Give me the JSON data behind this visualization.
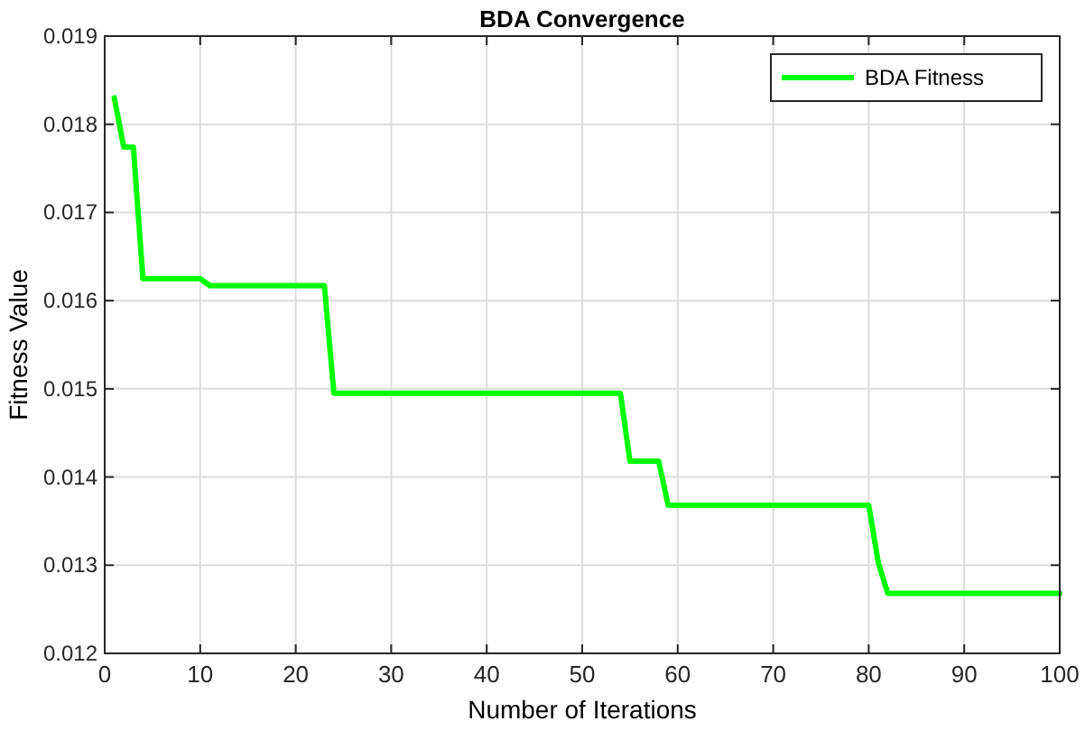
{
  "chart_data": {
    "type": "line",
    "title": "BDA Convergence",
    "xlabel": "Number of Iterations",
    "ylabel": "Fitness Value",
    "x": [
      1,
      2,
      3,
      4,
      10,
      11,
      23,
      24,
      54,
      55,
      58,
      59,
      80,
      81,
      82,
      100
    ],
    "series": [
      {
        "name": "BDA Fitness",
        "color": "#00ff00",
        "values": [
          0.0183,
          0.01774,
          0.01774,
          0.01625,
          0.01625,
          0.01617,
          0.01617,
          0.01495,
          0.01495,
          0.01418,
          0.01418,
          0.01368,
          0.01368,
          0.01303,
          0.01268,
          0.01268
        ]
      }
    ],
    "xlim": [
      0,
      100
    ],
    "xticks": [
      0,
      10,
      20,
      30,
      40,
      50,
      60,
      70,
      80,
      90,
      100
    ],
    "ylim": [
      0.012,
      0.019
    ],
    "yticks": [
      0.012,
      0.013,
      0.014,
      0.015,
      0.016,
      0.017,
      0.018,
      0.019
    ],
    "grid": true,
    "legend": "top right",
    "marker": "none",
    "line_style": "solid"
  }
}
